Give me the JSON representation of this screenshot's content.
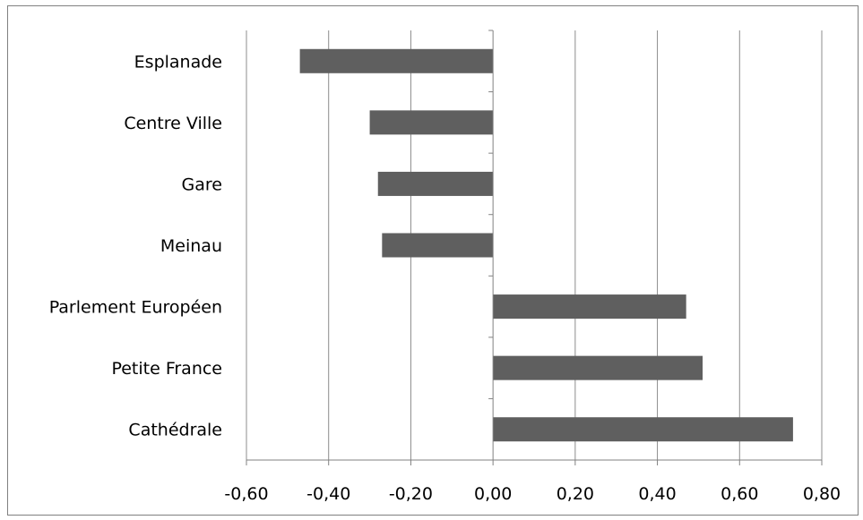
{
  "chart_data": {
    "type": "bar",
    "orientation": "horizontal",
    "categories": [
      "Esplanade",
      "Centre Ville",
      "Gare",
      "Meinau",
      "Parlement Européen",
      "Petite France",
      "Cathédrale"
    ],
    "values": [
      -0.47,
      -0.3,
      -0.28,
      -0.27,
      0.47,
      0.51,
      0.73
    ],
    "xlim": [
      -0.6,
      0.8
    ],
    "xticks": [
      -0.6,
      -0.4,
      -0.2,
      0.0,
      0.2,
      0.4,
      0.6,
      0.8
    ],
    "xtick_labels": [
      "-0,60",
      "-0,40",
      "-0,20",
      "0,00",
      "0,20",
      "0,40",
      "0,60",
      "0,80"
    ],
    "grid": "vertical major gridlines",
    "legend": "none",
    "title": "",
    "xlabel": "",
    "ylabel": "",
    "bar_color": "#5f5f5f",
    "grid_color": "#8c8c8c",
    "axis_color": "#808080"
  }
}
